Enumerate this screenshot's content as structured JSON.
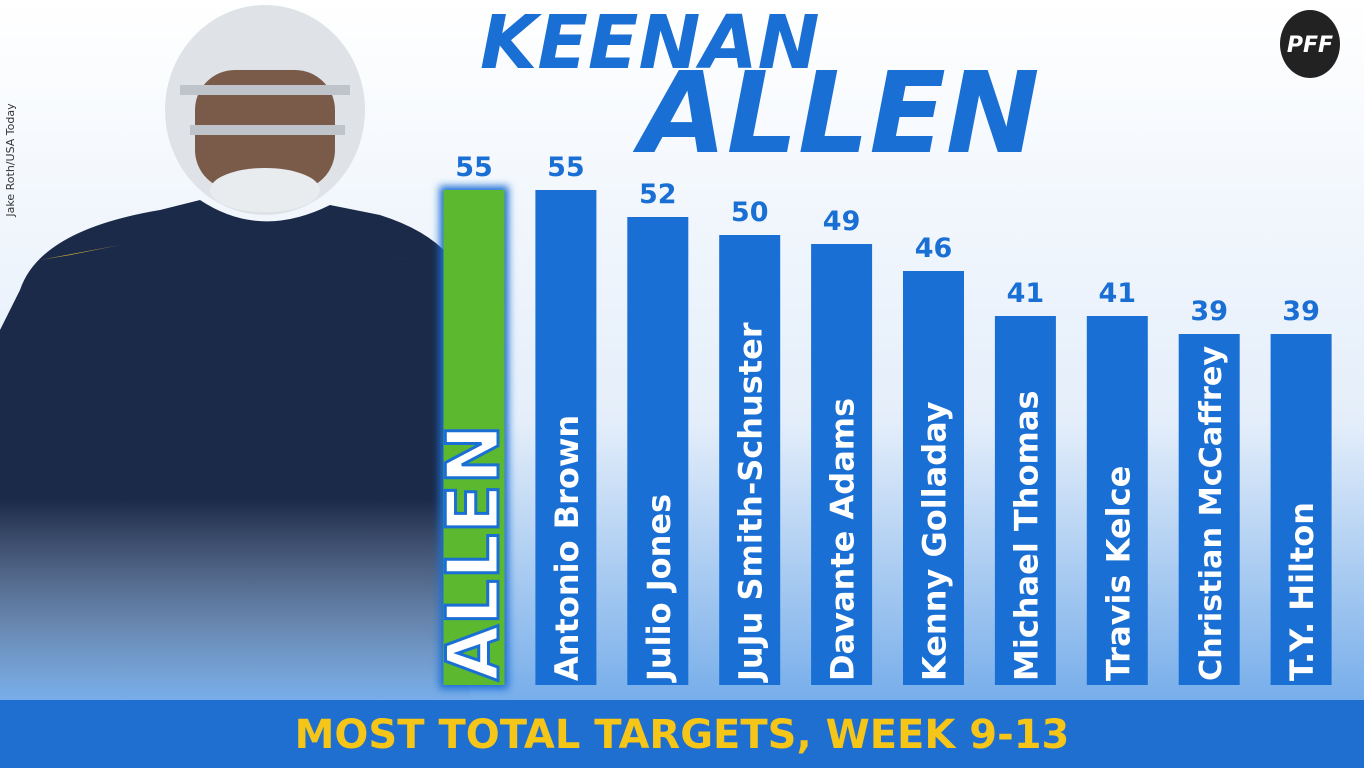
{
  "chart_data": {
    "type": "bar",
    "title": [
      "KEENAN",
      "ALLEN"
    ],
    "subtitle": "MOST TOTAL TARGETS, WEEK 9-13",
    "credit": "Jake Roth/USA Today",
    "logo": "PFF",
    "categories": [
      "ALLEN",
      "Antonio Brown",
      "Julio Jones",
      "JuJu Smith-Schuster",
      "Davante Adams",
      "Kenny Golladay",
      "Michael Thomas",
      "Travis Kelce",
      "Christian McCaffrey",
      "T.Y. Hilton"
    ],
    "values": [
      55,
      55,
      52,
      50,
      49,
      46,
      41,
      41,
      39,
      39
    ],
    "colors": [
      "#5cb82e",
      "#1a6fd4",
      "#1a6fd4",
      "#1a6fd4",
      "#1a6fd4",
      "#1a6fd4",
      "#1a6fd4",
      "#1a6fd4",
      "#1a6fd4",
      "#1a6fd4"
    ],
    "highlight": 0
  }
}
